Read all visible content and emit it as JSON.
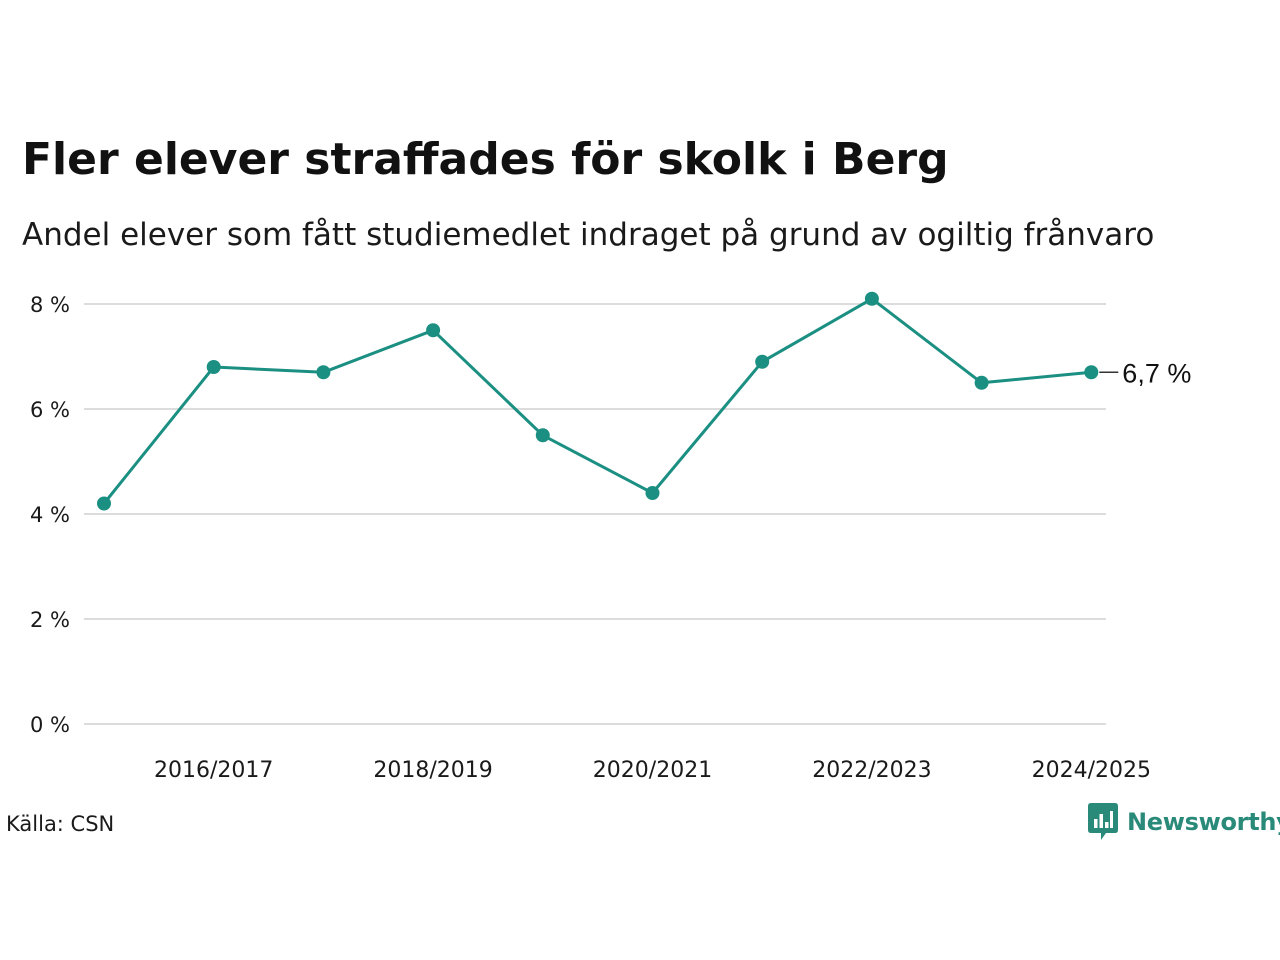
{
  "title": "Fler elever straffades för skolk i Berg",
  "subtitle": "Andel elever som fått studiemedlet indraget på grund av ogiltig frånvaro",
  "source": "Källa: CSN",
  "brand": {
    "name": "Newsworthy",
    "icon": "newsworthy-logo-icon",
    "color": "#2a8a79"
  },
  "colors": {
    "series": "#1b8f82",
    "grid": "#dcdcdc",
    "text": "#1a1a1a"
  },
  "chart_data": {
    "type": "line",
    "x": [
      "2015/2016",
      "2016/2017",
      "2017/2018",
      "2018/2019",
      "2019/2020",
      "2020/2021",
      "2021/2022",
      "2022/2023",
      "2023/2024",
      "2024/2025"
    ],
    "x_tick_labels": [
      "2016/2017",
      "2018/2019",
      "2020/2021",
      "2022/2023",
      "2024/2025"
    ],
    "series": [
      {
        "values": [
          4.2,
          6.8,
          6.7,
          7.5,
          5.5,
          4.4,
          6.9,
          8.1,
          6.5,
          6.7
        ]
      }
    ],
    "y_ticks": [
      0,
      2,
      4,
      6,
      8
    ],
    "y_tick_labels": [
      "0 %",
      "2 %",
      "4 %",
      "6 %",
      "8 %"
    ],
    "ylim": [
      0,
      8
    ],
    "end_label": "6,7 %",
    "grid": "horizontal",
    "legend": "none"
  }
}
